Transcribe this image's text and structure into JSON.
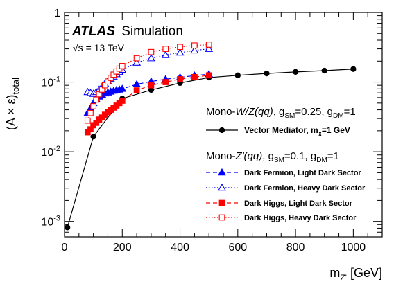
{
  "chart_data": {
    "type": "line",
    "experiment": "ATLAS",
    "simulation_label": "Simulation",
    "energy_label": "√s = 13 TeV",
    "ylabel": "(A × ε)",
    "ylabel_sub": "total",
    "xlabel": "m",
    "xlabel_sub": "Z'",
    "xlabel_unit": " [GeV]",
    "xlim": [
      0,
      1100
    ],
    "ylim": [
      0.0006,
      1
    ],
    "y_scale": "log",
    "x_ticks": [
      0,
      200,
      400,
      600,
      800,
      1000
    ],
    "x_tick_labels": [
      "0",
      "200",
      "400",
      "600",
      "800",
      "1000"
    ],
    "y_ticks": [
      0.001,
      0.01,
      0.1,
      1
    ],
    "y_tick_labels": [
      {
        "base": "10",
        "exp": "-3"
      },
      {
        "base": "10",
        "exp": "-2"
      },
      {
        "base": "10",
        "exp": "-1"
      },
      {
        "base": "1",
        "exp": ""
      }
    ],
    "legend_groups": [
      {
        "title_prefix": "Mono-",
        "title_italic": "W/Z(qq)",
        "title_rest": ", g",
        "g1_sub": "SM",
        "g1_val": "=0.25, g",
        "g2_sub": "DM",
        "g2_val": "=1"
      },
      {
        "title_prefix": "Mono-",
        "title_italic": "Z'(qq)",
        "title_rest": ", g",
        "g1_sub": "SM",
        "g1_val": "=0.1, g",
        "g2_sub": "DM",
        "g2_val": "=1"
      }
    ],
    "series": [
      {
        "name": "Vector Mediator, m",
        "name_sub": "χ",
        "name_rest": "=1 GeV",
        "color": "#000000",
        "marker": "circle",
        "filled": true,
        "line": "solid",
        "x": [
          10,
          100,
          200,
          300,
          400,
          500,
          600,
          700,
          800,
          900,
          1000
        ],
        "y": [
          0.00082,
          0.0165,
          0.058,
          0.077,
          0.097,
          0.116,
          0.125,
          0.133,
          0.14,
          0.146,
          0.154
        ]
      },
      {
        "name": "Dark Fermion, Light Dark Sector",
        "color": "#0000ff",
        "marker": "triangle",
        "filled": true,
        "line": "dashed",
        "x": [
          80,
          90,
          100,
          110,
          120,
          130,
          140,
          150,
          160,
          170,
          180,
          190,
          200,
          250,
          300,
          350,
          400,
          450,
          500
        ],
        "y": [
          0.036,
          0.042,
          0.05,
          0.057,
          0.062,
          0.066,
          0.069,
          0.071,
          0.073,
          0.075,
          0.077,
          0.078,
          0.08,
          0.093,
          0.102,
          0.11,
          0.117,
          0.124,
          0.13
        ]
      },
      {
        "name": "Dark Fermion, Heavy Dark Sector",
        "color": "#0000ff",
        "marker": "triangle",
        "filled": false,
        "line": "dotted",
        "x": [
          80,
          90,
          100,
          110,
          120,
          130,
          140,
          150,
          160,
          170,
          180,
          190,
          200,
          250,
          300,
          350,
          400,
          450,
          500
        ],
        "y": [
          0.072,
          0.07,
          0.068,
          0.072,
          0.078,
          0.086,
          0.095,
          0.103,
          0.112,
          0.12,
          0.13,
          0.14,
          0.15,
          0.19,
          0.22,
          0.245,
          0.265,
          0.285,
          0.3
        ]
      },
      {
        "name": "Dark Higgs, Light Dark Sector",
        "color": "#ff0000",
        "marker": "square",
        "filled": true,
        "line": "dashed",
        "x": [
          80,
          90,
          100,
          110,
          120,
          130,
          140,
          150,
          160,
          170,
          180,
          190,
          200,
          250,
          300,
          350,
          400,
          450,
          500
        ],
        "y": [
          0.019,
          0.021,
          0.024,
          0.026,
          0.029,
          0.031,
          0.034,
          0.037,
          0.04,
          0.043,
          0.046,
          0.05,
          0.054,
          0.076,
          0.09,
          0.1,
          0.11,
          0.118,
          0.125
        ]
      },
      {
        "name": "Dark Higgs, Heavy Dark Sector",
        "color": "#ff0000",
        "marker": "square",
        "filled": false,
        "line": "dotted",
        "x": [
          80,
          90,
          100,
          110,
          120,
          130,
          140,
          150,
          160,
          170,
          180,
          190,
          200,
          250,
          300,
          350,
          400,
          450,
          500
        ],
        "y": [
          0.028,
          0.036,
          0.045,
          0.056,
          0.067,
          0.078,
          0.09,
          0.102,
          0.115,
          0.128,
          0.142,
          0.156,
          0.17,
          0.22,
          0.27,
          0.3,
          0.32,
          0.335,
          0.345
        ]
      }
    ]
  }
}
